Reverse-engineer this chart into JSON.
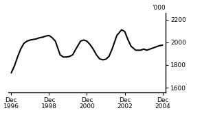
{
  "title": "",
  "ylabel_right": "'000",
  "xlim": [
    1996.75,
    2005.08
  ],
  "ylim": [
    1560,
    2260
  ],
  "yticks": [
    1600,
    1800,
    2000,
    2200
  ],
  "xticks": [
    1996.917,
    1998.917,
    2000.917,
    2002.917,
    2004.917
  ],
  "xticklabels": [
    "Dec\n1996",
    "Dec\n1998",
    "Dec\n2000",
    "Dec\n2002",
    "Dec\n2004"
  ],
  "line_color": "#000000",
  "line_width": 1.5,
  "background_color": "#ffffff",
  "x": [
    1996.917,
    1997.083,
    1997.25,
    1997.417,
    1997.583,
    1997.75,
    1997.917,
    1998.083,
    1998.25,
    1998.417,
    1998.583,
    1998.75,
    1998.917,
    1999.083,
    1999.25,
    1999.5,
    1999.667,
    1999.833,
    2000.0,
    2000.167,
    2000.333,
    2000.583,
    2000.75,
    2000.917,
    2001.083,
    2001.25,
    2001.417,
    2001.583,
    2001.75,
    2001.917,
    2002.083,
    2002.25,
    2002.5,
    2002.75,
    2002.917,
    2003.083,
    2003.25,
    2003.5,
    2003.75,
    2003.917,
    2004.083,
    2004.25,
    2004.5,
    2004.75,
    2004.917
  ],
  "y": [
    1730,
    1790,
    1870,
    1940,
    1990,
    2010,
    2020,
    2025,
    2030,
    2040,
    2045,
    2055,
    2060,
    2040,
    2010,
    1890,
    1870,
    1870,
    1875,
    1890,
    1940,
    2010,
    2020,
    2010,
    1980,
    1940,
    1890,
    1855,
    1845,
    1850,
    1875,
    1940,
    2060,
    2110,
    2095,
    2025,
    1965,
    1930,
    1930,
    1940,
    1930,
    1940,
    1955,
    1970,
    1975
  ]
}
